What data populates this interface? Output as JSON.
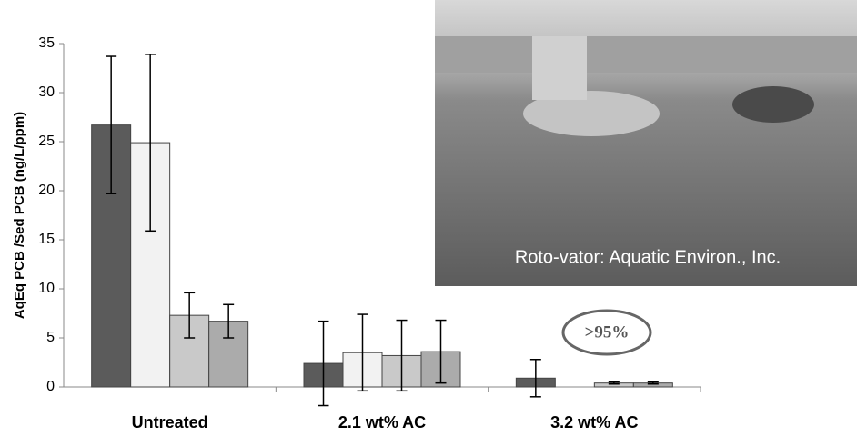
{
  "chart_data": {
    "type": "bar",
    "y_label": "AqEq PCB /Sed PCB (ng/L/ppm)",
    "categories": [
      "Untreated",
      "2.1 wt% AC",
      "3.2 wt% AC"
    ],
    "series": [
      {
        "color": "#5b5b5b",
        "values": [
          26.7,
          2.4,
          0.9
        ],
        "errors": [
          7.0,
          4.3,
          1.9
        ]
      },
      {
        "color": "#f2f2f2",
        "values": [
          24.9,
          3.5,
          null
        ],
        "errors": [
          9.0,
          3.9,
          null
        ]
      },
      {
        "color": "#c9c9c9",
        "values": [
          7.3,
          3.2,
          0.4
        ],
        "errors": [
          2.3,
          3.6,
          0.1
        ]
      },
      {
        "color": "#ababab",
        "values": [
          6.7,
          3.6,
          0.4
        ],
        "errors": [
          1.7,
          3.2,
          0.1
        ]
      }
    ],
    "ylim": [
      0,
      35
    ],
    "yticks": [
      0,
      5,
      10,
      15,
      20,
      25,
      30,
      35
    ],
    "annotation": ">95%",
    "photo_caption": "Roto-vator:  Aquatic Environ., Inc."
  }
}
